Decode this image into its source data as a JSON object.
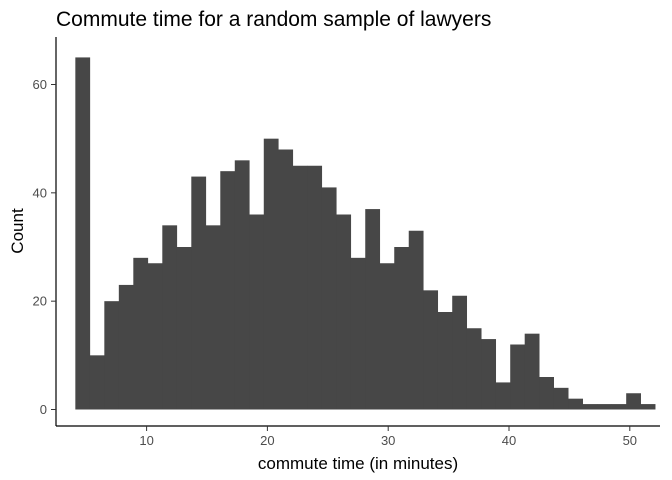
{
  "chart_data": {
    "type": "bar",
    "title": "Commute time for a random sample of lawyers",
    "xlabel": "commute time (in minutes)",
    "ylabel": "Count",
    "bin_width": 1.2,
    "bin_start": 4.1,
    "values": [
      65,
      10,
      20,
      23,
      28,
      27,
      34,
      30,
      43,
      34,
      44,
      46,
      36,
      50,
      48,
      45,
      45,
      41,
      36,
      28,
      37,
      27,
      30,
      33,
      22,
      18,
      21,
      15,
      13,
      5,
      12,
      14,
      6,
      4,
      2,
      1,
      1,
      1,
      3,
      1
    ],
    "xlim": [
      2.5,
      52.5
    ],
    "ylim": [
      0,
      67
    ],
    "x_ticks": [
      10,
      20,
      30,
      40,
      50
    ],
    "y_ticks": [
      0,
      20,
      40,
      60
    ],
    "bar_color": "#474747",
    "grid": false,
    "legend": "none"
  }
}
